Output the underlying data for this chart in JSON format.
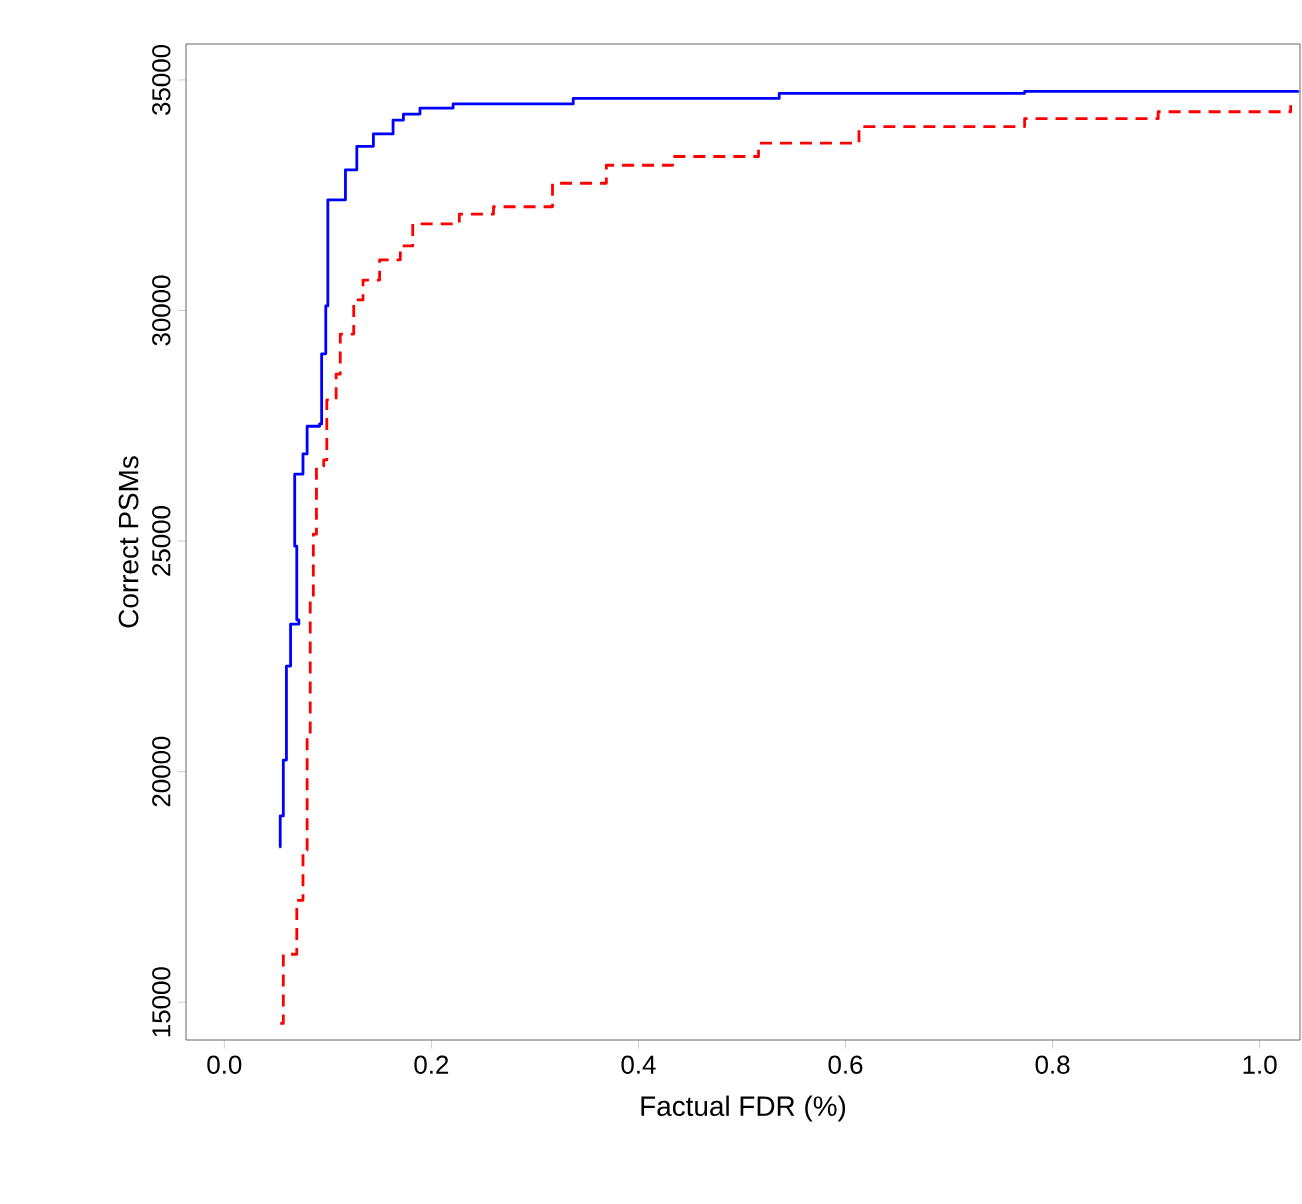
{
  "chart_data": {
    "type": "step",
    "xlabel": "Factual FDR (%)",
    "ylabel": "Correct PSMs",
    "xlim": [
      -0.037,
      1.039
    ],
    "ylim": [
      14180,
      35780
    ],
    "xticks": [
      {
        "value": 0,
        "label": "0.0"
      },
      {
        "value": 0.2,
        "label": "0.2"
      },
      {
        "value": 0.4,
        "label": "0.4"
      },
      {
        "value": 0.6,
        "label": "0.6"
      },
      {
        "value": 0.8,
        "label": "0.8"
      },
      {
        "value": 1.0,
        "label": "1.0"
      }
    ],
    "yticks": [
      15000,
      20000,
      25000,
      30000,
      35000
    ],
    "grid": false,
    "series": [
      {
        "color": "#0000ff",
        "line_style": "solid",
        "x": [
          0.053,
          0.054,
          0.057,
          0.06,
          0.064,
          0.072,
          0.07,
          0.068,
          0.076,
          0.08,
          0.092,
          0.094,
          0.098,
          0.1,
          0.112,
          0.117,
          0.128,
          0.144,
          0.163,
          0.173,
          0.189,
          0.221,
          0.337,
          0.536,
          0.773,
          1.037
        ],
        "values": [
          18370,
          19040,
          20250,
          22290,
          23200,
          23290,
          24890,
          26450,
          26890,
          27490,
          27540,
          29060,
          30100,
          32400,
          32400,
          33050,
          33560,
          33830,
          34130,
          34260,
          34390,
          34480,
          34600,
          34710,
          34750,
          34770
        ]
      },
      {
        "color": "#ff0000",
        "line_style": "dashed",
        "x": [
          0.054,
          0.057,
          0.07,
          0.076,
          0.08,
          0.083,
          0.086,
          0.089,
          0.096,
          0.099,
          0.108,
          0.112,
          0.125,
          0.134,
          0.15,
          0.17,
          0.182,
          0.227,
          0.26,
          0.317,
          0.369,
          0.433,
          0.516,
          0.613,
          0.773,
          0.902,
          1.03
        ],
        "values": [
          14540,
          16040,
          17210,
          18300,
          20810,
          23720,
          25150,
          26630,
          26760,
          28060,
          28620,
          29490,
          30230,
          30660,
          31100,
          31400,
          31880,
          32090,
          32250,
          32760,
          33150,
          33340,
          33630,
          33990,
          34160,
          34310,
          34450
        ]
      }
    ]
  }
}
